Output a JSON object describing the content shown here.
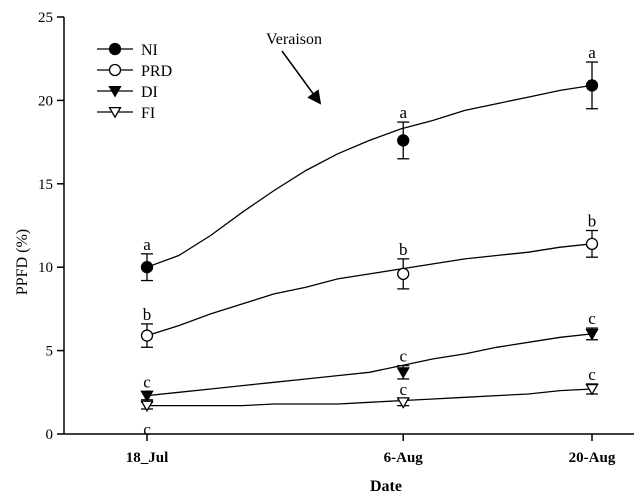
{
  "chart_data": {
    "type": "line",
    "title": "",
    "xlabel": "Date",
    "ylabel": "PPFD (%)",
    "ylim": [
      0,
      25
    ],
    "yticks": [
      0,
      5,
      10,
      15,
      20,
      25
    ],
    "x": [
      "18_Jul",
      "6-Aug",
      "20-Aug"
    ],
    "x_days": [
      0,
      19,
      33
    ],
    "grid": false,
    "legend": {
      "position": "top-left"
    },
    "annotation": {
      "text": "Veraison"
    },
    "series": [
      {
        "name": "NI",
        "marker": "filled-circle",
        "values": [
          10.0,
          17.6,
          20.9
        ],
        "errors": [
          0.8,
          1.1,
          1.4
        ],
        "labels": [
          "a",
          "a",
          "a"
        ],
        "curve": [
          10.0,
          10.7,
          11.9,
          13.3,
          14.6,
          15.8,
          16.8,
          17.6,
          18.3,
          18.8,
          19.4,
          19.8,
          20.2,
          20.6,
          20.9
        ]
      },
      {
        "name": "PRD",
        "marker": "open-circle",
        "values": [
          5.9,
          9.6,
          11.4
        ],
        "errors": [
          0.7,
          0.9,
          0.8
        ],
        "labels": [
          "b",
          "b",
          "b"
        ],
        "curve": [
          5.9,
          6.5,
          7.2,
          7.8,
          8.4,
          8.8,
          9.3,
          9.6,
          9.9,
          10.2,
          10.5,
          10.7,
          10.9,
          11.2,
          11.4
        ]
      },
      {
        "name": "DI",
        "marker": "filled-triangle-down",
        "values": [
          2.3,
          3.7,
          6.0
        ],
        "errors": [
          0.25,
          0.4,
          0.35
        ],
        "labels": [
          "c",
          "c",
          "c"
        ],
        "curve": [
          2.3,
          2.5,
          2.7,
          2.9,
          3.1,
          3.3,
          3.5,
          3.7,
          4.1,
          4.5,
          4.8,
          5.2,
          5.5,
          5.8,
          6.0
        ]
      },
      {
        "name": "FI",
        "marker": "open-triangle-down",
        "values": [
          1.7,
          1.9,
          2.7
        ],
        "errors": [
          0.2,
          0.2,
          0.3
        ],
        "labels": [
          "c",
          "c",
          "c"
        ],
        "below_first_label": "c",
        "curve": [
          1.7,
          1.7,
          1.7,
          1.7,
          1.8,
          1.8,
          1.8,
          1.9,
          2.0,
          2.1,
          2.2,
          2.3,
          2.4,
          2.6,
          2.7
        ]
      }
    ]
  }
}
